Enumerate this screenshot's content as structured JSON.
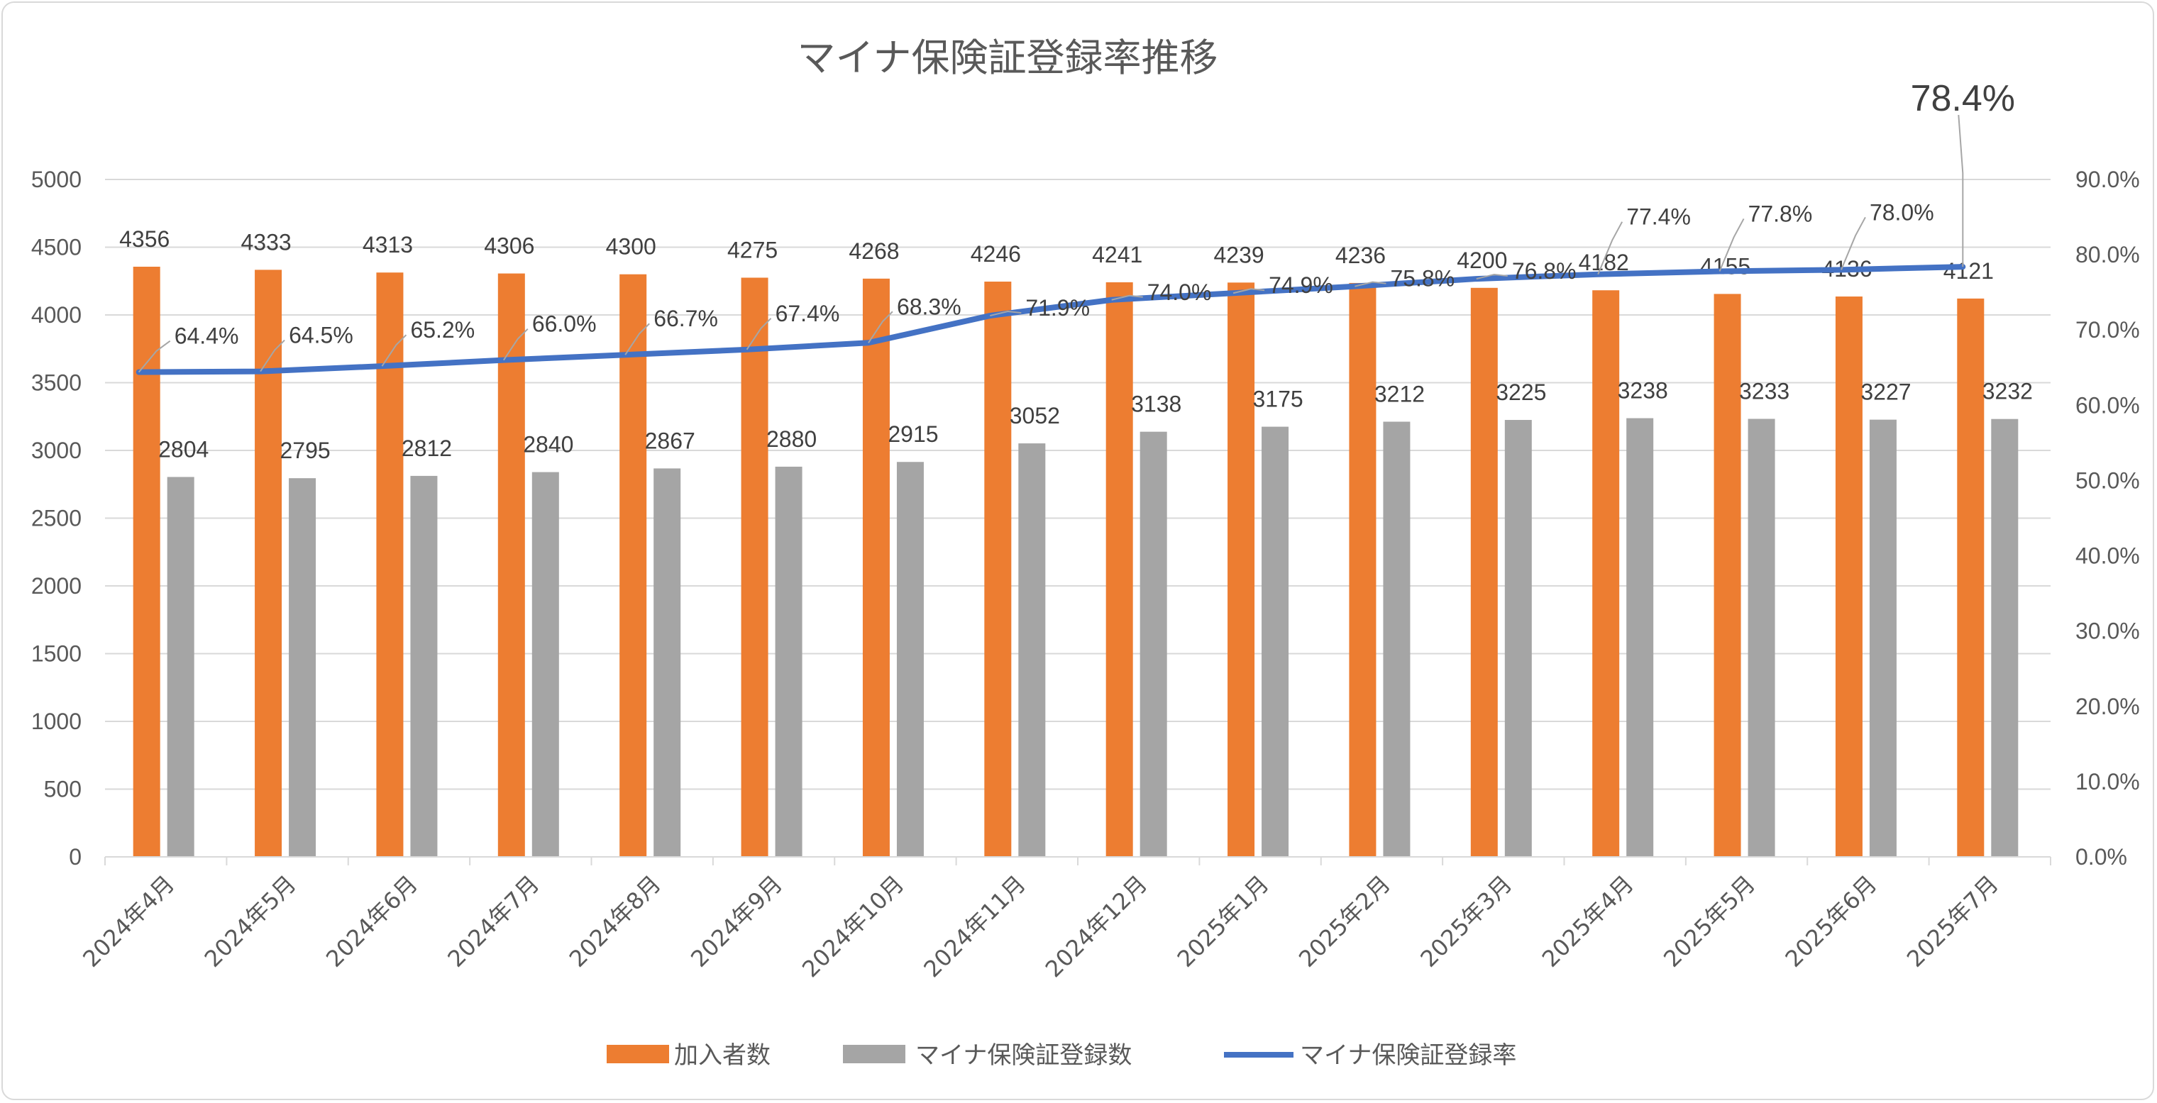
{
  "colors": {
    "enrolled": "#ed7d31",
    "registered": "#a5a5a5",
    "rate": "#4472c4",
    "grid": "#d9d9d9",
    "text": "#595959",
    "leader": "#a6a6a6"
  },
  "chart_data": {
    "type": "bar",
    "title": "マイナ保険証登録率推移",
    "categories": [
      "2024年4月",
      "2024年5月",
      "2024年6月",
      "2024年7月",
      "2024年8月",
      "2024年9月",
      "2024年10月",
      "2024年11月",
      "2024年12月",
      "2025年1月",
      "2025年2月",
      "2025年3月",
      "2025年4月",
      "2025年5月",
      "2025年6月",
      "2025年7月"
    ],
    "series": [
      {
        "name": "加入者数",
        "type": "bar",
        "axis": "left",
        "values": [
          4356,
          4333,
          4313,
          4306,
          4300,
          4275,
          4268,
          4246,
          4241,
          4239,
          4236,
          4200,
          4182,
          4155,
          4136,
          4121
        ]
      },
      {
        "name": "マイナ保険証登録数",
        "type": "bar",
        "axis": "left",
        "values": [
          2804,
          2795,
          2812,
          2840,
          2867,
          2880,
          2915,
          3052,
          3138,
          3175,
          3212,
          3225,
          3238,
          3233,
          3227,
          3232
        ]
      },
      {
        "name": "マイナ保険証登録率",
        "type": "line",
        "axis": "right",
        "values": [
          64.4,
          64.5,
          65.2,
          66.0,
          66.7,
          67.4,
          68.3,
          71.9,
          74.0,
          74.9,
          75.8,
          76.8,
          77.4,
          77.8,
          78.0,
          78.4
        ],
        "labels": [
          "64.4%",
          "64.5%",
          "65.2%",
          "66.0%",
          "66.7%",
          "67.4%",
          "68.3%",
          "71.9%",
          "74.0%",
          "74.9%",
          "75.8%",
          "76.8%",
          "77.4%",
          "77.8%",
          "78.0%",
          "78.4%"
        ]
      }
    ],
    "ylim_left": [
      0,
      5000
    ],
    "yticks_left": [
      "0",
      "500",
      "1000",
      "1500",
      "2000",
      "2500",
      "3000",
      "3500",
      "4000",
      "4500",
      "5000"
    ],
    "ylim_right": [
      0,
      90
    ],
    "yticks_right": [
      "0.0%",
      "10.0%",
      "20.0%",
      "30.0%",
      "40.0%",
      "50.0%",
      "60.0%",
      "70.0%",
      "80.0%",
      "90.0%"
    ],
    "grid": true,
    "legend_position": "bottom"
  }
}
